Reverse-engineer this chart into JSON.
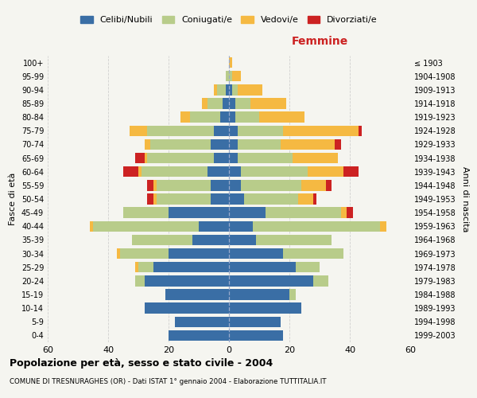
{
  "age_groups": [
    "0-4",
    "5-9",
    "10-14",
    "15-19",
    "20-24",
    "25-29",
    "30-34",
    "35-39",
    "40-44",
    "45-49",
    "50-54",
    "55-59",
    "60-64",
    "65-69",
    "70-74",
    "75-79",
    "80-84",
    "85-89",
    "90-94",
    "95-99",
    "100+"
  ],
  "birth_years": [
    "1999-2003",
    "1994-1998",
    "1989-1993",
    "1984-1988",
    "1979-1983",
    "1974-1978",
    "1969-1973",
    "1964-1968",
    "1959-1963",
    "1954-1958",
    "1949-1953",
    "1944-1948",
    "1939-1943",
    "1934-1938",
    "1929-1933",
    "1924-1928",
    "1919-1923",
    "1914-1918",
    "1909-1913",
    "1904-1908",
    "≤ 1903"
  ],
  "males": {
    "celibe": [
      20,
      18,
      28,
      21,
      28,
      25,
      20,
      12,
      10,
      20,
      6,
      6,
      7,
      5,
      6,
      5,
      3,
      2,
      1,
      0,
      0
    ],
    "coniugato": [
      0,
      0,
      0,
      0,
      3,
      5,
      16,
      20,
      35,
      15,
      18,
      18,
      22,
      22,
      20,
      22,
      10,
      5,
      3,
      1,
      0
    ],
    "vedovo": [
      0,
      0,
      0,
      0,
      0,
      1,
      1,
      0,
      1,
      0,
      1,
      1,
      1,
      1,
      2,
      6,
      3,
      2,
      1,
      0,
      0
    ],
    "divorziato": [
      0,
      0,
      0,
      0,
      0,
      0,
      0,
      0,
      0,
      0,
      2,
      2,
      5,
      3,
      0,
      0,
      0,
      0,
      0,
      0,
      0
    ]
  },
  "females": {
    "nubile": [
      18,
      17,
      24,
      20,
      28,
      22,
      18,
      9,
      8,
      12,
      5,
      4,
      4,
      3,
      3,
      3,
      2,
      2,
      1,
      0,
      0
    ],
    "coniugata": [
      0,
      0,
      0,
      2,
      5,
      8,
      20,
      25,
      42,
      25,
      18,
      20,
      22,
      18,
      14,
      15,
      8,
      5,
      2,
      1,
      0
    ],
    "vedova": [
      0,
      0,
      0,
      0,
      0,
      0,
      0,
      0,
      2,
      2,
      5,
      8,
      12,
      15,
      18,
      25,
      15,
      12,
      8,
      3,
      1
    ],
    "divorziata": [
      0,
      0,
      0,
      0,
      0,
      0,
      0,
      0,
      0,
      2,
      1,
      2,
      5,
      0,
      2,
      1,
      0,
      0,
      0,
      0,
      0
    ]
  },
  "colors": {
    "celibe": "#3a6ea5",
    "coniugato": "#b8cc8a",
    "vedovo": "#f5b942",
    "divorziato": "#cc2222"
  },
  "legend_labels": [
    "Celibi/Nubili",
    "Coniugati/e",
    "Vedovi/e",
    "Divorziati/e"
  ],
  "title": "Popolazione per età, sesso e stato civile - 2004",
  "subtitle": "COMUNE DI TRESNURAGHES (OR) - Dati ISTAT 1° gennaio 2004 - Elaborazione TUTTITALIA.IT",
  "xlabel_right": "Femmine",
  "ylabel_left": "Fasce di età",
  "ylabel_right": "Anni di nascita",
  "xlim": 60,
  "background_color": "#f5f5f0"
}
